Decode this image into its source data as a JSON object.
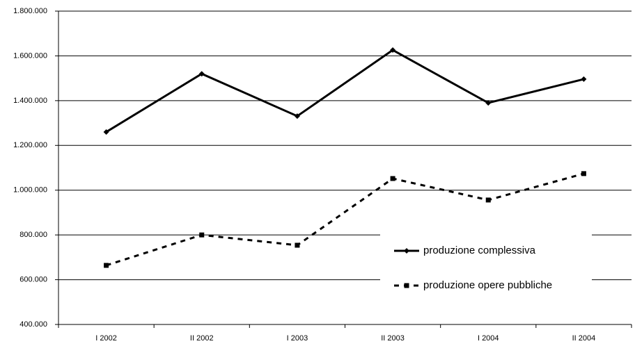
{
  "chart_data": {
    "type": "line",
    "categories": [
      "I 2002",
      "II 2002",
      "I 2003",
      "II 2003",
      "I 2004",
      "II 2004"
    ],
    "series": [
      {
        "name": "produzione complessiva",
        "color": "#000000",
        "dash": "solid",
        "marker": "diamond",
        "values": [
          1260000,
          1520000,
          1331000,
          1626000,
          1390000,
          1496000
        ]
      },
      {
        "name": "produzione opere pubbliche",
        "color": "#000000",
        "dash": "dashed",
        "marker": "square",
        "values": [
          664000,
          800000,
          754000,
          1052000,
          956000,
          1074000
        ]
      }
    ],
    "ylim": [
      400000,
      1800000
    ],
    "yticks": [
      {
        "value": 400000,
        "label": "400.000"
      },
      {
        "value": 600000,
        "label": "600.000"
      },
      {
        "value": 800000,
        "label": "800.000"
      },
      {
        "value": 1000000,
        "label": "1.000.000"
      },
      {
        "value": 1200000,
        "label": "1.200.000"
      },
      {
        "value": 1400000,
        "label": "1.400.000"
      },
      {
        "value": 1600000,
        "label": "1.600.000"
      },
      {
        "value": 1800000,
        "label": "1.800.000"
      }
    ],
    "grid": true
  }
}
